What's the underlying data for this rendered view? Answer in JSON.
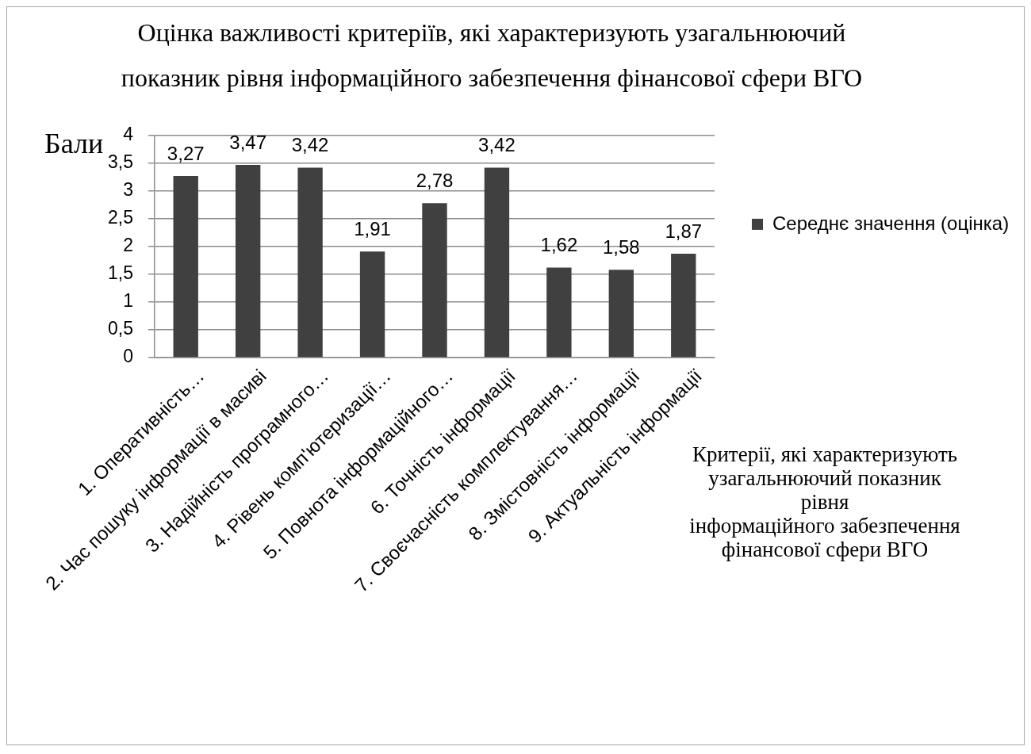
{
  "chart_data": {
    "type": "bar",
    "title": "Оцінка важливості критеріїв, які характеризують узагальнюючий\nпоказник рівня інформаційного забезпечення фінансової сфери ВГО",
    "ylabel": "Бали",
    "xlabel": "Критерії, які характеризують\nузагальнюючий показник\nрівня\nінформаційного забезпечення\nфінансової сфери ВГО",
    "categories": [
      "1. Оперативність…",
      "2. Час пошуку інформації в масиві",
      "3. Надійність програмного…",
      "4. Рівень комп'ютеризації…",
      "5. Повнота інформаційного…",
      "6. Точність інформації",
      "7. Своєчасність комплектування…",
      "8. Змістовність інформації",
      "9. Актуальність інформації"
    ],
    "series": [
      {
        "name": "Середнє значення (оцінка)",
        "color": "#404040",
        "values": [
          3.27,
          3.47,
          3.42,
          1.91,
          2.78,
          3.42,
          1.62,
          1.58,
          1.87
        ],
        "value_labels": [
          "3,27",
          "3,47",
          "3,42",
          "1,91",
          "2,78",
          "3,42",
          "1,62",
          "1,58",
          "1,87"
        ]
      }
    ],
    "ylim": [
      0,
      4
    ],
    "yticks": [
      0,
      {
        "value": 0.5,
        "label": "0,5"
      },
      1,
      {
        "value": 1.5,
        "label": "1,5"
      },
      2,
      {
        "value": 2.5,
        "label": "2,5"
      },
      3,
      {
        "value": 3.5,
        "label": "3,5"
      },
      4
    ],
    "grid": "y",
    "legend": "right"
  }
}
